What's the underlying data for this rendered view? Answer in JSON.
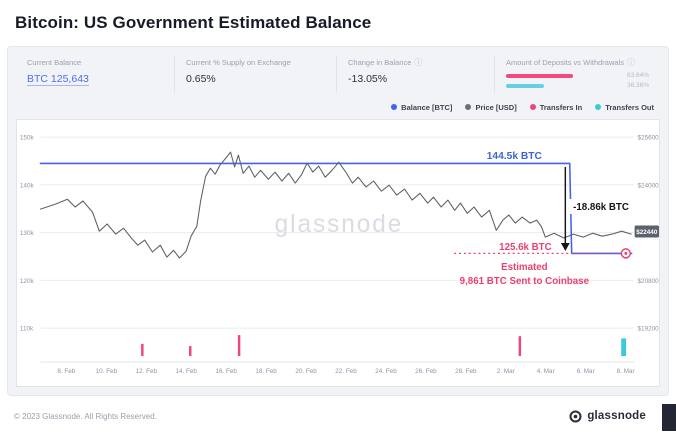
{
  "header": {
    "title": "Bitcoin: US Government Estimated Balance"
  },
  "stats": [
    {
      "label": "Current Balance",
      "value": "BTC 125,643"
    },
    {
      "label": "Current % Supply on Exchange",
      "value": "0.65%"
    },
    {
      "label": "Change in Balance",
      "value": "-13.05%"
    },
    {
      "label": "Amount of Deposits vs Withdrawals",
      "bars": [
        {
          "pct": "63.64%",
          "width": 63.64,
          "color": "#ef4b7e"
        },
        {
          "pct": "36.36%",
          "width": 36.36,
          "color": "#66cfe3"
        }
      ]
    }
  ],
  "legend": [
    {
      "label": "Balance [BTC]",
      "color": "#4263eb"
    },
    {
      "label": "Price [USD]",
      "color": "#696e78"
    },
    {
      "label": "Transfers In",
      "color": "#f0447c"
    },
    {
      "label": "Transfers Out",
      "color": "#3bc9db"
    }
  ],
  "chart_data": {
    "type": "line",
    "title": "Bitcoin: US Government Estimated Balance",
    "watermark": "glassnode",
    "x_axis": {
      "min": 6.7,
      "max": 36.4,
      "ticks": [
        {
          "d": 8,
          "label": "8. Feb"
        },
        {
          "d": 10,
          "label": "10. Feb"
        },
        {
          "d": 12,
          "label": "12. Feb"
        },
        {
          "d": 14,
          "label": "14. Feb"
        },
        {
          "d": 16,
          "label": "16. Feb"
        },
        {
          "d": 18,
          "label": "18. Feb"
        },
        {
          "d": 20,
          "label": "20. Feb"
        },
        {
          "d": 22,
          "label": "22. Feb"
        },
        {
          "d": 24,
          "label": "24. Feb"
        },
        {
          "d": 26,
          "label": "26. Feb"
        },
        {
          "d": 28,
          "label": "28. Feb"
        },
        {
          "d": 30,
          "label": "2. Mar"
        },
        {
          "d": 32,
          "label": "4. Mar"
        },
        {
          "d": 34,
          "label": "6. Mar"
        },
        {
          "d": 36,
          "label": "8. Mar"
        }
      ]
    },
    "y_left": {
      "min": 102900,
      "max": 151500,
      "ticks": [
        {
          "v": 150000,
          "label": "150k"
        },
        {
          "v": 140000,
          "label": "140k"
        },
        {
          "v": 130000,
          "label": "130k"
        },
        {
          "v": 120000,
          "label": "120k"
        },
        {
          "v": 110000,
          "label": "110k"
        }
      ]
    },
    "y_right": {
      "min": 18064,
      "max": 25841,
      "ticks": [
        {
          "v": 25600,
          "label": "$25600"
        },
        {
          "v": 24000,
          "label": "$24000"
        },
        {
          "v": 22400,
          "label": "$22400"
        },
        {
          "v": 20800,
          "label": "$20800"
        },
        {
          "v": 19200,
          "label": "$19200"
        }
      ]
    },
    "series": [
      {
        "name": "Balance [BTC]",
        "axis": "left",
        "color": "#4263eb",
        "points": [
          [
            6.7,
            144500
          ],
          [
            33.2,
            144500
          ],
          [
            33.3,
            125643
          ],
          [
            36.3,
            125643
          ]
        ]
      },
      {
        "name": "Price [USD]",
        "axis": "right",
        "color": "#5f6368",
        "points": [
          [
            6.7,
            23190
          ],
          [
            7.47,
            23360
          ],
          [
            8.05,
            23520
          ],
          [
            8.44,
            23260
          ],
          [
            8.83,
            23460
          ],
          [
            9.31,
            23090
          ],
          [
            9.65,
            22450
          ],
          [
            10.04,
            22690
          ],
          [
            10.47,
            22350
          ],
          [
            10.86,
            22550
          ],
          [
            11.25,
            22220
          ],
          [
            11.58,
            21980
          ],
          [
            11.92,
            22150
          ],
          [
            12.31,
            21750
          ],
          [
            12.7,
            21980
          ],
          [
            13.03,
            21580
          ],
          [
            13.37,
            21810
          ],
          [
            13.66,
            21550
          ],
          [
            14.0,
            21780
          ],
          [
            14.24,
            22280
          ],
          [
            14.53,
            22620
          ],
          [
            14.72,
            23460
          ],
          [
            14.97,
            24290
          ],
          [
            15.21,
            24560
          ],
          [
            15.45,
            24360
          ],
          [
            15.69,
            24660
          ],
          [
            15.98,
            24900
          ],
          [
            16.22,
            25100
          ],
          [
            16.42,
            24600
          ],
          [
            16.61,
            25000
          ],
          [
            16.85,
            24390
          ],
          [
            17.14,
            24630
          ],
          [
            17.43,
            24260
          ],
          [
            17.72,
            24490
          ],
          [
            18.11,
            24190
          ],
          [
            18.45,
            24430
          ],
          [
            18.79,
            24130
          ],
          [
            19.13,
            24390
          ],
          [
            19.46,
            24060
          ],
          [
            19.76,
            24330
          ],
          [
            20.05,
            24730
          ],
          [
            20.34,
            24430
          ],
          [
            20.63,
            24630
          ],
          [
            20.96,
            24260
          ],
          [
            21.3,
            24490
          ],
          [
            21.64,
            24760
          ],
          [
            22.03,
            24390
          ],
          [
            22.32,
            24060
          ],
          [
            22.61,
            24260
          ],
          [
            23.0,
            23930
          ],
          [
            23.38,
            24130
          ],
          [
            23.77,
            23790
          ],
          [
            24.16,
            23990
          ],
          [
            24.54,
            23660
          ],
          [
            24.93,
            23860
          ],
          [
            25.31,
            23490
          ],
          [
            25.7,
            23720
          ],
          [
            26.09,
            23390
          ],
          [
            26.38,
            23590
          ],
          [
            26.76,
            23260
          ],
          [
            27.1,
            23490
          ],
          [
            27.44,
            23150
          ],
          [
            27.73,
            23390
          ],
          [
            28.07,
            23050
          ],
          [
            28.41,
            23260
          ],
          [
            28.79,
            22920
          ],
          [
            29.18,
            23150
          ],
          [
            29.52,
            22480
          ],
          [
            29.86,
            22820
          ],
          [
            30.15,
            22990
          ],
          [
            30.48,
            22720
          ],
          [
            30.82,
            22920
          ],
          [
            31.21,
            22720
          ],
          [
            31.55,
            22820
          ],
          [
            31.79,
            22590
          ],
          [
            31.98,
            22250
          ],
          [
            32.42,
            22380
          ],
          [
            32.9,
            22220
          ],
          [
            33.38,
            22350
          ],
          [
            33.87,
            22250
          ],
          [
            34.35,
            22380
          ],
          [
            34.83,
            22280
          ],
          [
            35.32,
            22350
          ],
          [
            35.8,
            22450
          ],
          [
            36.28,
            22350
          ]
        ]
      }
    ],
    "transfers_in": {
      "color": "#f0447c",
      "bars": [
        [
          11.8,
          0.55
        ],
        [
          14.2,
          0.45
        ],
        [
          16.65,
          0.95
        ],
        [
          30.7,
          0.9
        ]
      ]
    },
    "transfers_out": {
      "color": "#3bc9db",
      "bars": [
        [
          35.9,
          0.8
        ]
      ]
    },
    "annotations": {
      "peak_label": "144.5k BTC",
      "drop_label": "-18.86k BTC",
      "low_label": "125.6k BTC",
      "note_line1": "Estimated",
      "note_line2": "9,861 BTC Sent to Coinbase",
      "dashed_level": 125643,
      "price_tag": "$22440",
      "price_tag_value": 22440,
      "colors": {
        "peak": "#3e63e0",
        "drop": "#14161c",
        "low": "#e8426f"
      }
    }
  },
  "footer": {
    "copyright": "© 2023 Glassnode. All Rights Reserved.",
    "logo": "glassnode"
  }
}
